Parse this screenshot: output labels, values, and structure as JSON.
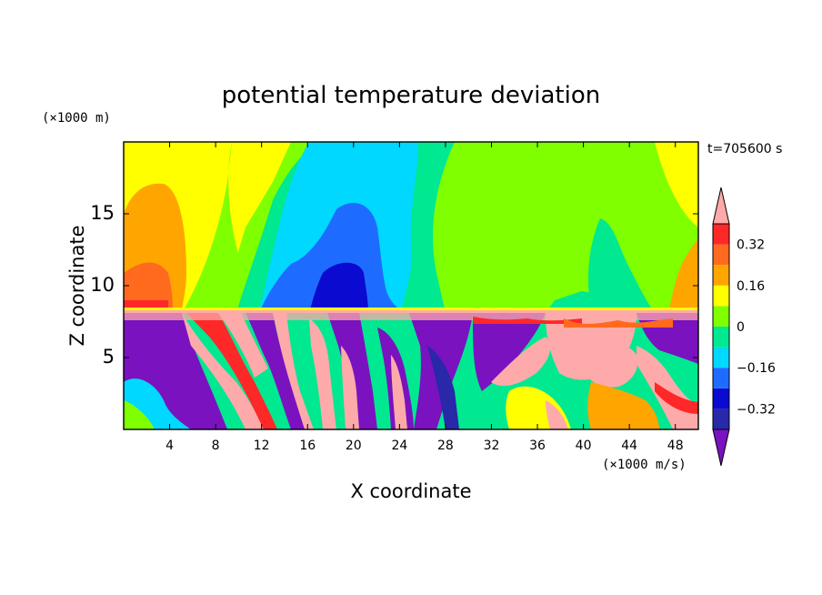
{
  "chart_data": {
    "type": "heatmap",
    "title": "potential temperature deviation",
    "xlabel": "X coordinate",
    "ylabel": "Z coordinate",
    "x_unit": "(×1000 m/s)",
    "y_unit": "(×1000 m)",
    "time_label": "t=705600 s",
    "xlim": [
      0,
      50
    ],
    "ylim": [
      0,
      20
    ],
    "x_ticks": [
      4,
      8,
      12,
      16,
      20,
      24,
      28,
      32,
      36,
      40,
      44,
      48
    ],
    "y_ticks": [
      5,
      10,
      15
    ],
    "colorbar": {
      "levels": [
        -0.4,
        -0.32,
        -0.24,
        -0.16,
        -0.08,
        0,
        0.08,
        0.16,
        0.24,
        0.32,
        0.4
      ],
      "tick_labels": [
        "0.32",
        "0.16",
        "0",
        "−0.16",
        "−0.32"
      ],
      "tick_values": [
        0.32,
        0.16,
        0,
        -0.16,
        -0.32
      ],
      "colors_low_to_high": [
        "#7a12c0",
        "#2828a8",
        "#0a0ad0",
        "#1e6cff",
        "#00d8ff",
        "#00e890",
        "#7fff00",
        "#ffff00",
        "#ffa500",
        "#ff6a1e",
        "#ff2828",
        "#ffaaaa"
      ]
    },
    "grid": false
  }
}
